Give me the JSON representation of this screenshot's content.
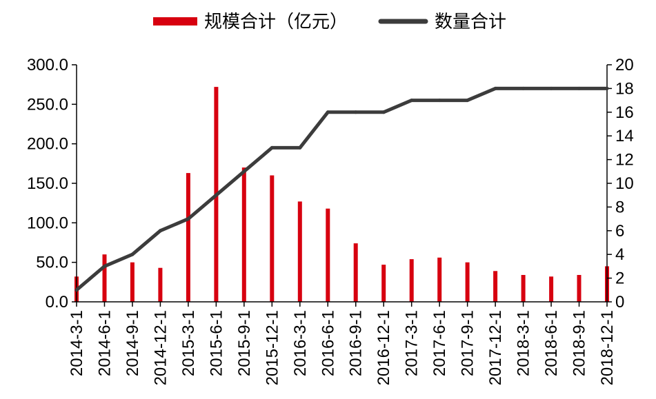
{
  "chart_data": {
    "type": "bar",
    "categories": [
      "2014-3-1",
      "2014-6-1",
      "2014-9-1",
      "2014-12-1",
      "2015-3-1",
      "2015-6-1",
      "2015-9-1",
      "2015-12-1",
      "2016-3-1",
      "2016-6-1",
      "2016-9-1",
      "2016-12-1",
      "2017-3-1",
      "2017-6-1",
      "2017-9-1",
      "2017-12-1",
      "2018-3-1",
      "2018-6-1",
      "2018-9-1",
      "2018-12-1"
    ],
    "series": [
      {
        "name": "规模合计（亿元）",
        "type": "bar",
        "axis": "left",
        "color": "#d7000f",
        "values": [
          32,
          60,
          50,
          43,
          163,
          272,
          170,
          160,
          127,
          118,
          74,
          47,
          54,
          56,
          50,
          39,
          34,
          32,
          34,
          45
        ]
      },
      {
        "name": "数量合计",
        "type": "line",
        "axis": "right",
        "color": "#3c3c3c",
        "values": [
          1,
          3,
          4,
          6,
          7,
          9,
          11,
          13,
          13,
          16,
          16,
          16,
          17,
          17,
          17,
          18,
          18,
          18,
          18,
          18
        ]
      }
    ],
    "y_left": {
      "min": 0,
      "max": 300,
      "ticks": [
        "0.0",
        "50.0",
        "100.0",
        "150.0",
        "200.0",
        "250.0",
        "300.0"
      ]
    },
    "y_right": {
      "min": 0,
      "max": 20,
      "ticks": [
        "0",
        "2",
        "4",
        "6",
        "8",
        "10",
        "12",
        "14",
        "16",
        "18",
        "20"
      ]
    },
    "grid": false,
    "legend_position": "top-center"
  }
}
